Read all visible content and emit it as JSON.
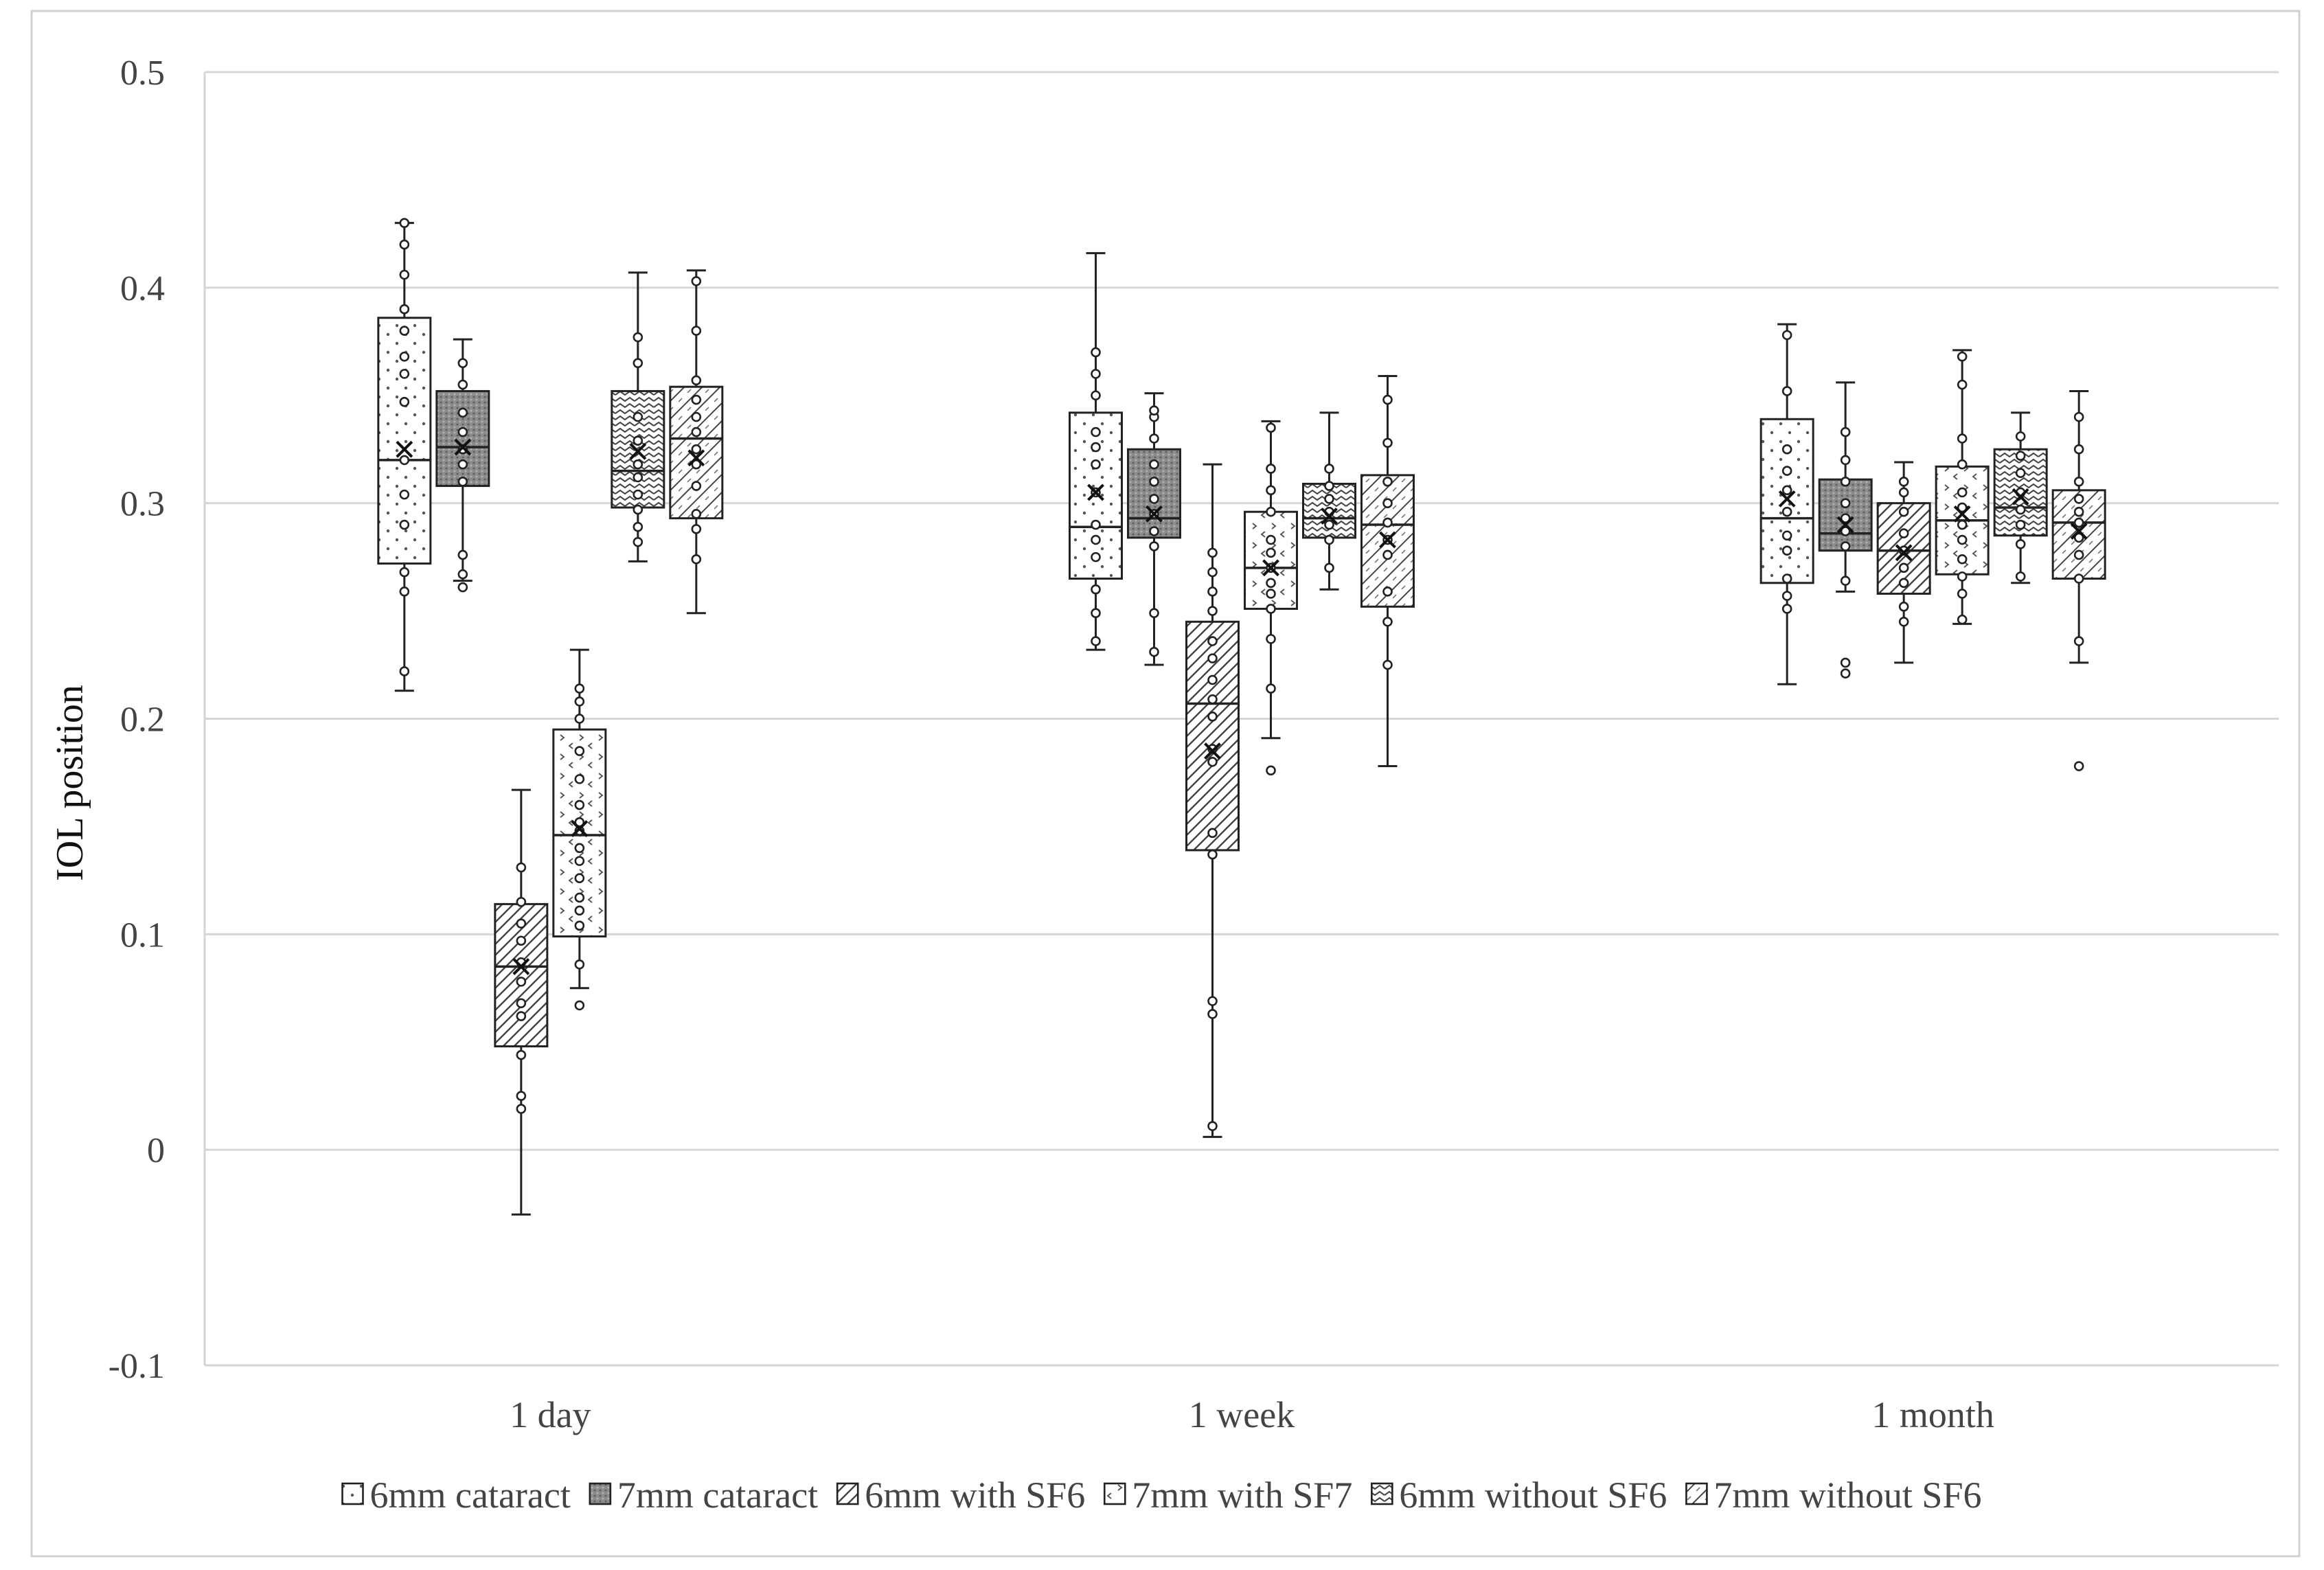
{
  "chart_data": {
    "type": "box",
    "title": "",
    "xlabel": "",
    "ylabel": "IOL position",
    "ylim": [
      -0.1,
      0.5
    ],
    "yticks": [
      -0.1,
      0,
      0.1,
      0.2,
      0.3,
      0.4,
      0.5
    ],
    "ytick_labels": [
      "-0.1",
      "0",
      "0.1",
      "0.2",
      "0.3",
      "0.4",
      "0.5"
    ],
    "grid": true,
    "legend_position": "bottom",
    "categories": [
      "1 day",
      "1 week",
      "1 month"
    ],
    "series": [
      {
        "name": "6mm cataract",
        "pattern": "dots",
        "boxes": [
          {
            "min": 0.213,
            "q1": 0.272,
            "median": 0.32,
            "q3": 0.386,
            "max": 0.43,
            "mean": 0.325,
            "points": [
              0.222,
              0.259,
              0.268,
              0.29,
              0.304,
              0.32,
              0.347,
              0.36,
              0.368,
              0.38,
              0.39,
              0.406,
              0.42,
              0.43
            ],
            "outliers": []
          },
          {
            "min": 0.232,
            "q1": 0.265,
            "median": 0.289,
            "q3": 0.342,
            "max": 0.416,
            "mean": 0.305,
            "points": [
              0.236,
              0.249,
              0.26,
              0.275,
              0.283,
              0.29,
              0.305,
              0.318,
              0.326,
              0.333,
              0.35,
              0.36,
              0.37
            ],
            "outliers": []
          },
          {
            "min": 0.216,
            "q1": 0.263,
            "median": 0.293,
            "q3": 0.339,
            "max": 0.383,
            "mean": 0.302,
            "points": [
              0.251,
              0.257,
              0.265,
              0.278,
              0.285,
              0.296,
              0.306,
              0.315,
              0.325,
              0.352,
              0.378
            ],
            "outliers": []
          }
        ]
      },
      {
        "name": "7mm cataract",
        "pattern": "dark",
        "boxes": [
          {
            "min": 0.264,
            "q1": 0.308,
            "median": 0.326,
            "q3": 0.352,
            "max": 0.376,
            "mean": 0.326,
            "points": [
              0.276,
              0.31,
              0.318,
              0.325,
              0.333,
              0.342,
              0.355,
              0.365
            ],
            "outliers": [
              0.261,
              0.267
            ]
          },
          {
            "min": 0.225,
            "q1": 0.284,
            "median": 0.293,
            "q3": 0.325,
            "max": 0.351,
            "mean": 0.295,
            "points": [
              0.231,
              0.249,
              0.28,
              0.287,
              0.295,
              0.302,
              0.31,
              0.318,
              0.33,
              0.34,
              0.343
            ],
            "outliers": []
          },
          {
            "min": 0.259,
            "q1": 0.278,
            "median": 0.286,
            "q3": 0.311,
            "max": 0.356,
            "mean": 0.29,
            "points": [
              0.264,
              0.28,
              0.287,
              0.293,
              0.3,
              0.31,
              0.32,
              0.333
            ],
            "outliers": [
              0.221,
              0.226
            ]
          }
        ]
      },
      {
        "name": "6mm with SF6",
        "pattern": "diagonal",
        "boxes": [
          {
            "min": -0.03,
            "q1": 0.048,
            "median": 0.085,
            "q3": 0.114,
            "max": 0.167,
            "mean": 0.085,
            "points": [
              0.019,
              0.025,
              0.044,
              0.062,
              0.068,
              0.078,
              0.087,
              0.097,
              0.105,
              0.115,
              0.131
            ],
            "outliers": []
          },
          {
            "min": 0.006,
            "q1": 0.139,
            "median": 0.207,
            "q3": 0.245,
            "max": 0.318,
            "mean": 0.185,
            "points": [
              0.011,
              0.063,
              0.069,
              0.137,
              0.147,
              0.18,
              0.186,
              0.201,
              0.209,
              0.218,
              0.228,
              0.236,
              0.25,
              0.259,
              0.268,
              0.277
            ],
            "outliers": []
          },
          {
            "min": 0.226,
            "q1": 0.258,
            "median": 0.278,
            "q3": 0.3,
            "max": 0.319,
            "mean": 0.277,
            "points": [
              0.245,
              0.252,
              0.263,
              0.27,
              0.278,
              0.286,
              0.296,
              0.305,
              0.31
            ],
            "outliers": []
          }
        ]
      },
      {
        "name": "7mm with SF7",
        "pattern": "chevrons",
        "boxes": [
          {
            "min": 0.075,
            "q1": 0.099,
            "median": 0.146,
            "q3": 0.195,
            "max": 0.232,
            "mean": 0.149,
            "points": [
              0.086,
              0.104,
              0.111,
              0.117,
              0.126,
              0.134,
              0.14,
              0.148,
              0.152,
              0.16,
              0.172,
              0.185,
              0.2,
              0.208,
              0.214
            ],
            "outliers": [
              0.067
            ]
          },
          {
            "min": 0.191,
            "q1": 0.251,
            "median": 0.27,
            "q3": 0.296,
            "max": 0.338,
            "mean": 0.27,
            "points": [
              0.214,
              0.237,
              0.251,
              0.258,
              0.263,
              0.27,
              0.277,
              0.283,
              0.296,
              0.306,
              0.316,
              0.335
            ],
            "outliers": [
              0.176
            ]
          },
          {
            "min": 0.244,
            "q1": 0.267,
            "median": 0.292,
            "q3": 0.317,
            "max": 0.371,
            "mean": 0.295,
            "points": [
              0.246,
              0.258,
              0.266,
              0.274,
              0.283,
              0.29,
              0.298,
              0.305,
              0.318,
              0.33,
              0.355,
              0.368
            ],
            "outliers": []
          }
        ]
      },
      {
        "name": "6mm without SF6",
        "pattern": "waves",
        "boxes": [
          {
            "min": 0.273,
            "q1": 0.298,
            "median": 0.315,
            "q3": 0.352,
            "max": 0.407,
            "mean": 0.324,
            "points": [
              0.282,
              0.289,
              0.297,
              0.304,
              0.312,
              0.318,
              0.329,
              0.34,
              0.365,
              0.377
            ],
            "outliers": []
          },
          {
            "min": 0.26,
            "q1": 0.284,
            "median": 0.293,
            "q3": 0.309,
            "max": 0.342,
            "mean": 0.294,
            "points": [
              0.27,
              0.283,
              0.29,
              0.296,
              0.302,
              0.308,
              0.316
            ],
            "outliers": []
          },
          {
            "min": 0.263,
            "q1": 0.285,
            "median": 0.298,
            "q3": 0.325,
            "max": 0.342,
            "mean": 0.303,
            "points": [
              0.266,
              0.281,
              0.29,
              0.297,
              0.305,
              0.314,
              0.322,
              0.331
            ],
            "outliers": []
          }
        ]
      },
      {
        "name": "7mm without SF6",
        "pattern": "crosshatch",
        "boxes": [
          {
            "min": 0.249,
            "q1": 0.293,
            "median": 0.33,
            "q3": 0.354,
            "max": 0.408,
            "mean": 0.321,
            "points": [
              0.274,
              0.288,
              0.295,
              0.308,
              0.318,
              0.325,
              0.333,
              0.34,
              0.348,
              0.357,
              0.38,
              0.403
            ],
            "outliers": []
          },
          {
            "min": 0.178,
            "q1": 0.252,
            "median": 0.29,
            "q3": 0.313,
            "max": 0.359,
            "mean": 0.283,
            "points": [
              0.225,
              0.245,
              0.259,
              0.276,
              0.283,
              0.291,
              0.3,
              0.31,
              0.328,
              0.348
            ],
            "outliers": []
          },
          {
            "min": 0.226,
            "q1": 0.265,
            "median": 0.291,
            "q3": 0.306,
            "max": 0.352,
            "mean": 0.287,
            "points": [
              0.236,
              0.265,
              0.276,
              0.284,
              0.291,
              0.296,
              0.302,
              0.31,
              0.325,
              0.34
            ],
            "outliers": [
              0.178
            ]
          }
        ]
      }
    ]
  }
}
